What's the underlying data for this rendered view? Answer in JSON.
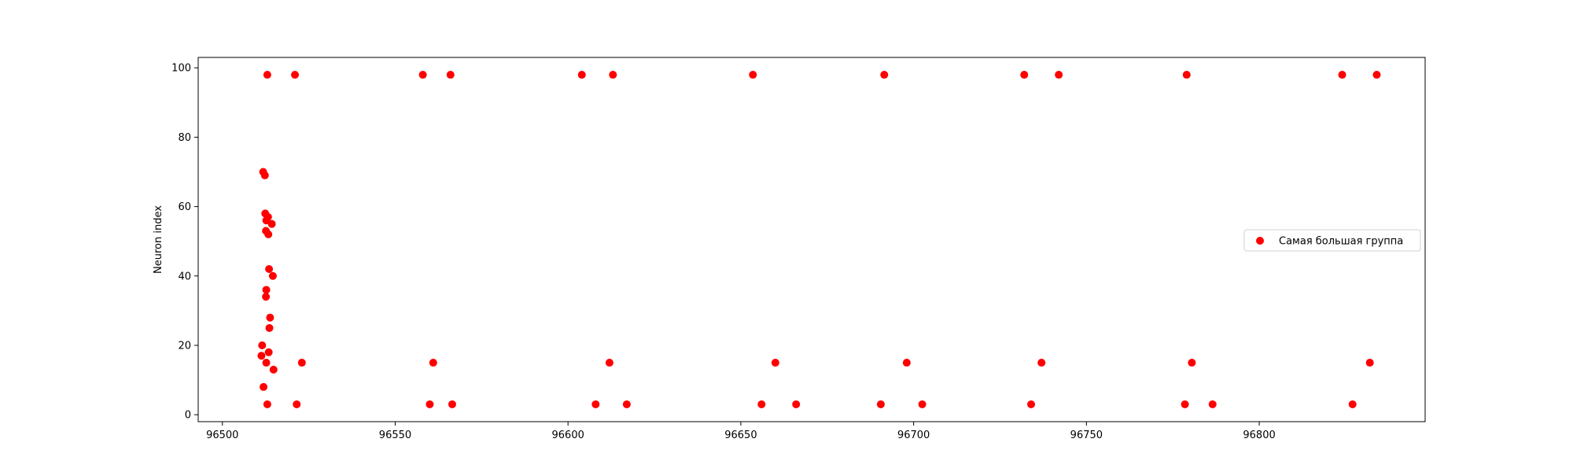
{
  "chart_data": {
    "type": "scatter",
    "title": "",
    "xlabel": "",
    "ylabel": "Neuron index",
    "xlim": [
      96493,
      96848
    ],
    "ylim": [
      -2,
      103
    ],
    "xticks": [
      96500,
      96550,
      96600,
      96650,
      96700,
      96750,
      96800
    ],
    "yticks": [
      0,
      20,
      40,
      60,
      80,
      100
    ],
    "grid": false,
    "legend_position": "center-right",
    "series": [
      {
        "name": "Самая большая группа",
        "color": "#ff0000",
        "x": [
          96513,
          96521,
          96558,
          96566,
          96604,
          96613,
          96653.5,
          96691.5,
          96732,
          96742,
          96779,
          96824,
          96834,
          96511.8,
          96512.3,
          96512.4,
          96512.7,
          96513.2,
          96514.3,
          96512.6,
          96513.3,
          96513.5,
          96514.6,
          96512.7,
          96512.6,
          96513.8,
          96513.6,
          96511.5,
          96511.3,
          96513.4,
          96512.7,
          96514.8,
          96511.9,
          96523,
          96561,
          96612,
          96660,
          96698,
          96737,
          96780.5,
          96832,
          96513,
          96521.5,
          96560,
          96566.5,
          96608,
          96617,
          96656,
          96666,
          96690.5,
          96702.5,
          96734,
          96778.5,
          96786.5,
          96827
        ],
        "y": [
          98,
          98,
          98,
          98,
          98,
          98,
          98,
          98,
          98,
          98,
          98,
          98,
          98,
          70,
          69,
          58,
          56,
          57,
          55,
          53,
          52,
          42,
          40,
          36,
          34,
          28,
          25,
          20,
          17,
          18,
          15,
          13,
          8,
          15,
          15,
          15,
          15,
          15,
          15,
          15,
          15,
          3,
          3,
          3,
          3,
          3,
          3,
          3,
          3,
          3,
          3,
          3,
          3,
          3,
          3
        ]
      }
    ]
  }
}
